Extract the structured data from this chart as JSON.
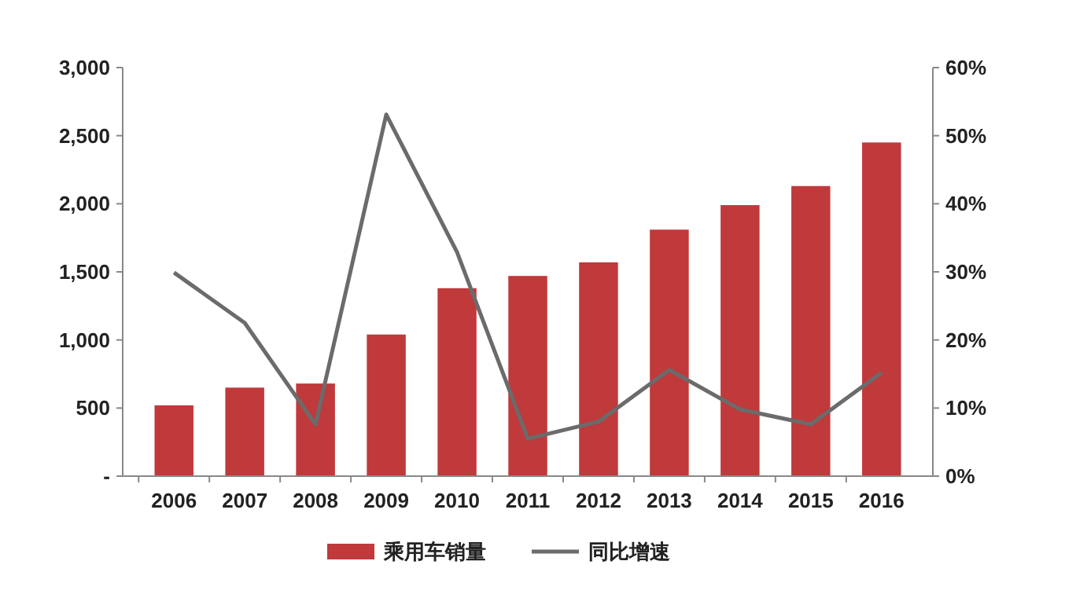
{
  "chart_data": {
    "type": "bar",
    "categories": [
      "2006",
      "2007",
      "2008",
      "2009",
      "2010",
      "2011",
      "2012",
      "2013",
      "2014",
      "2015",
      "2016"
    ],
    "series": [
      {
        "name": "乘用车销量",
        "color": "#c0393b",
        "values": [
          520,
          650,
          680,
          1040,
          1380,
          1470,
          1570,
          1810,
          1990,
          2130,
          2450
        ]
      },
      {
        "name": "同比增速",
        "type": "line",
        "axis": "y2",
        "color": "#6b6b6b",
        "values": [
          29.9,
          22.5,
          7.6,
          53.1,
          32.9,
          5.5,
          8.0,
          15.6,
          9.8,
          7.6,
          15.2
        ]
      }
    ],
    "ylim": [
      0,
      3000
    ],
    "yticks": [
      {
        "value": 0,
        "label": "-"
      },
      {
        "value": 500,
        "label": "500"
      },
      {
        "value": 1000,
        "label": "1,000"
      },
      {
        "value": 1500,
        "label": "1,500"
      },
      {
        "value": 2000,
        "label": "2,000"
      },
      {
        "value": 2500,
        "label": "2,500"
      },
      {
        "value": 3000,
        "label": "3,000"
      }
    ],
    "y2lim": [
      0,
      60
    ],
    "y2ticks": [
      {
        "value": 0,
        "label": "0%"
      },
      {
        "value": 10,
        "label": "10%"
      },
      {
        "value": 20,
        "label": "20%"
      },
      {
        "value": 30,
        "label": "30%"
      },
      {
        "value": 40,
        "label": "40%"
      },
      {
        "value": 50,
        "label": "50%"
      },
      {
        "value": 60,
        "label": "60%"
      }
    ],
    "grid": false,
    "legend": "bottom"
  }
}
